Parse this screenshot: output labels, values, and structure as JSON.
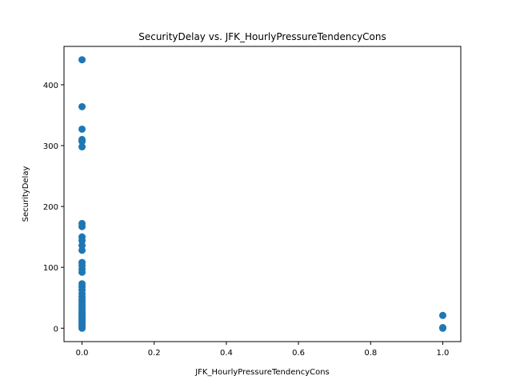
{
  "chart_data": {
    "type": "scatter",
    "title": "SecurityDelay vs. JFK_HourlyPressureTendencyCons",
    "xlabel": "JFK_HourlyPressureTendencyCons",
    "ylabel": "SecurityDelay",
    "xlim": [
      -0.05,
      1.05
    ],
    "ylim": [
      -22,
      463
    ],
    "xticks": [
      0.0,
      0.2,
      0.4,
      0.6,
      0.8,
      1.0
    ],
    "xtick_labels": [
      "0.0",
      "0.2",
      "0.4",
      "0.6",
      "0.8",
      "1.0"
    ],
    "yticks": [
      0,
      100,
      200,
      300,
      400
    ],
    "ytick_labels": [
      "0",
      "100",
      "200",
      "300",
      "400"
    ],
    "grid": false,
    "marker_color": "#1f77b4",
    "points": [
      {
        "x": 0,
        "y": 441
      },
      {
        "x": 0,
        "y": 364
      },
      {
        "x": 0,
        "y": 327
      },
      {
        "x": 0,
        "y": 310
      },
      {
        "x": 0,
        "y": 307
      },
      {
        "x": 0,
        "y": 298
      },
      {
        "x": 0,
        "y": 172
      },
      {
        "x": 0,
        "y": 167
      },
      {
        "x": 0,
        "y": 150
      },
      {
        "x": 0,
        "y": 144
      },
      {
        "x": 0,
        "y": 136
      },
      {
        "x": 0,
        "y": 128
      },
      {
        "x": 0,
        "y": 108
      },
      {
        "x": 0,
        "y": 103
      },
      {
        "x": 0,
        "y": 97
      },
      {
        "x": 0,
        "y": 92
      },
      {
        "x": 0,
        "y": 73
      },
      {
        "x": 0,
        "y": 68
      },
      {
        "x": 0,
        "y": 63
      },
      {
        "x": 0,
        "y": 57
      },
      {
        "x": 0,
        "y": 52
      },
      {
        "x": 0,
        "y": 47
      },
      {
        "x": 0,
        "y": 43
      },
      {
        "x": 0,
        "y": 39
      },
      {
        "x": 0,
        "y": 35
      },
      {
        "x": 0,
        "y": 31
      },
      {
        "x": 0,
        "y": 27
      },
      {
        "x": 0,
        "y": 24
      },
      {
        "x": 0,
        "y": 21
      },
      {
        "x": 0,
        "y": 18
      },
      {
        "x": 0,
        "y": 15
      },
      {
        "x": 0,
        "y": 12
      },
      {
        "x": 0,
        "y": 9
      },
      {
        "x": 0,
        "y": 6
      },
      {
        "x": 0,
        "y": 3
      },
      {
        "x": 0,
        "y": 0
      },
      {
        "x": 1,
        "y": 21
      },
      {
        "x": 1,
        "y": 1
      },
      {
        "x": 1,
        "y": 0
      }
    ]
  }
}
